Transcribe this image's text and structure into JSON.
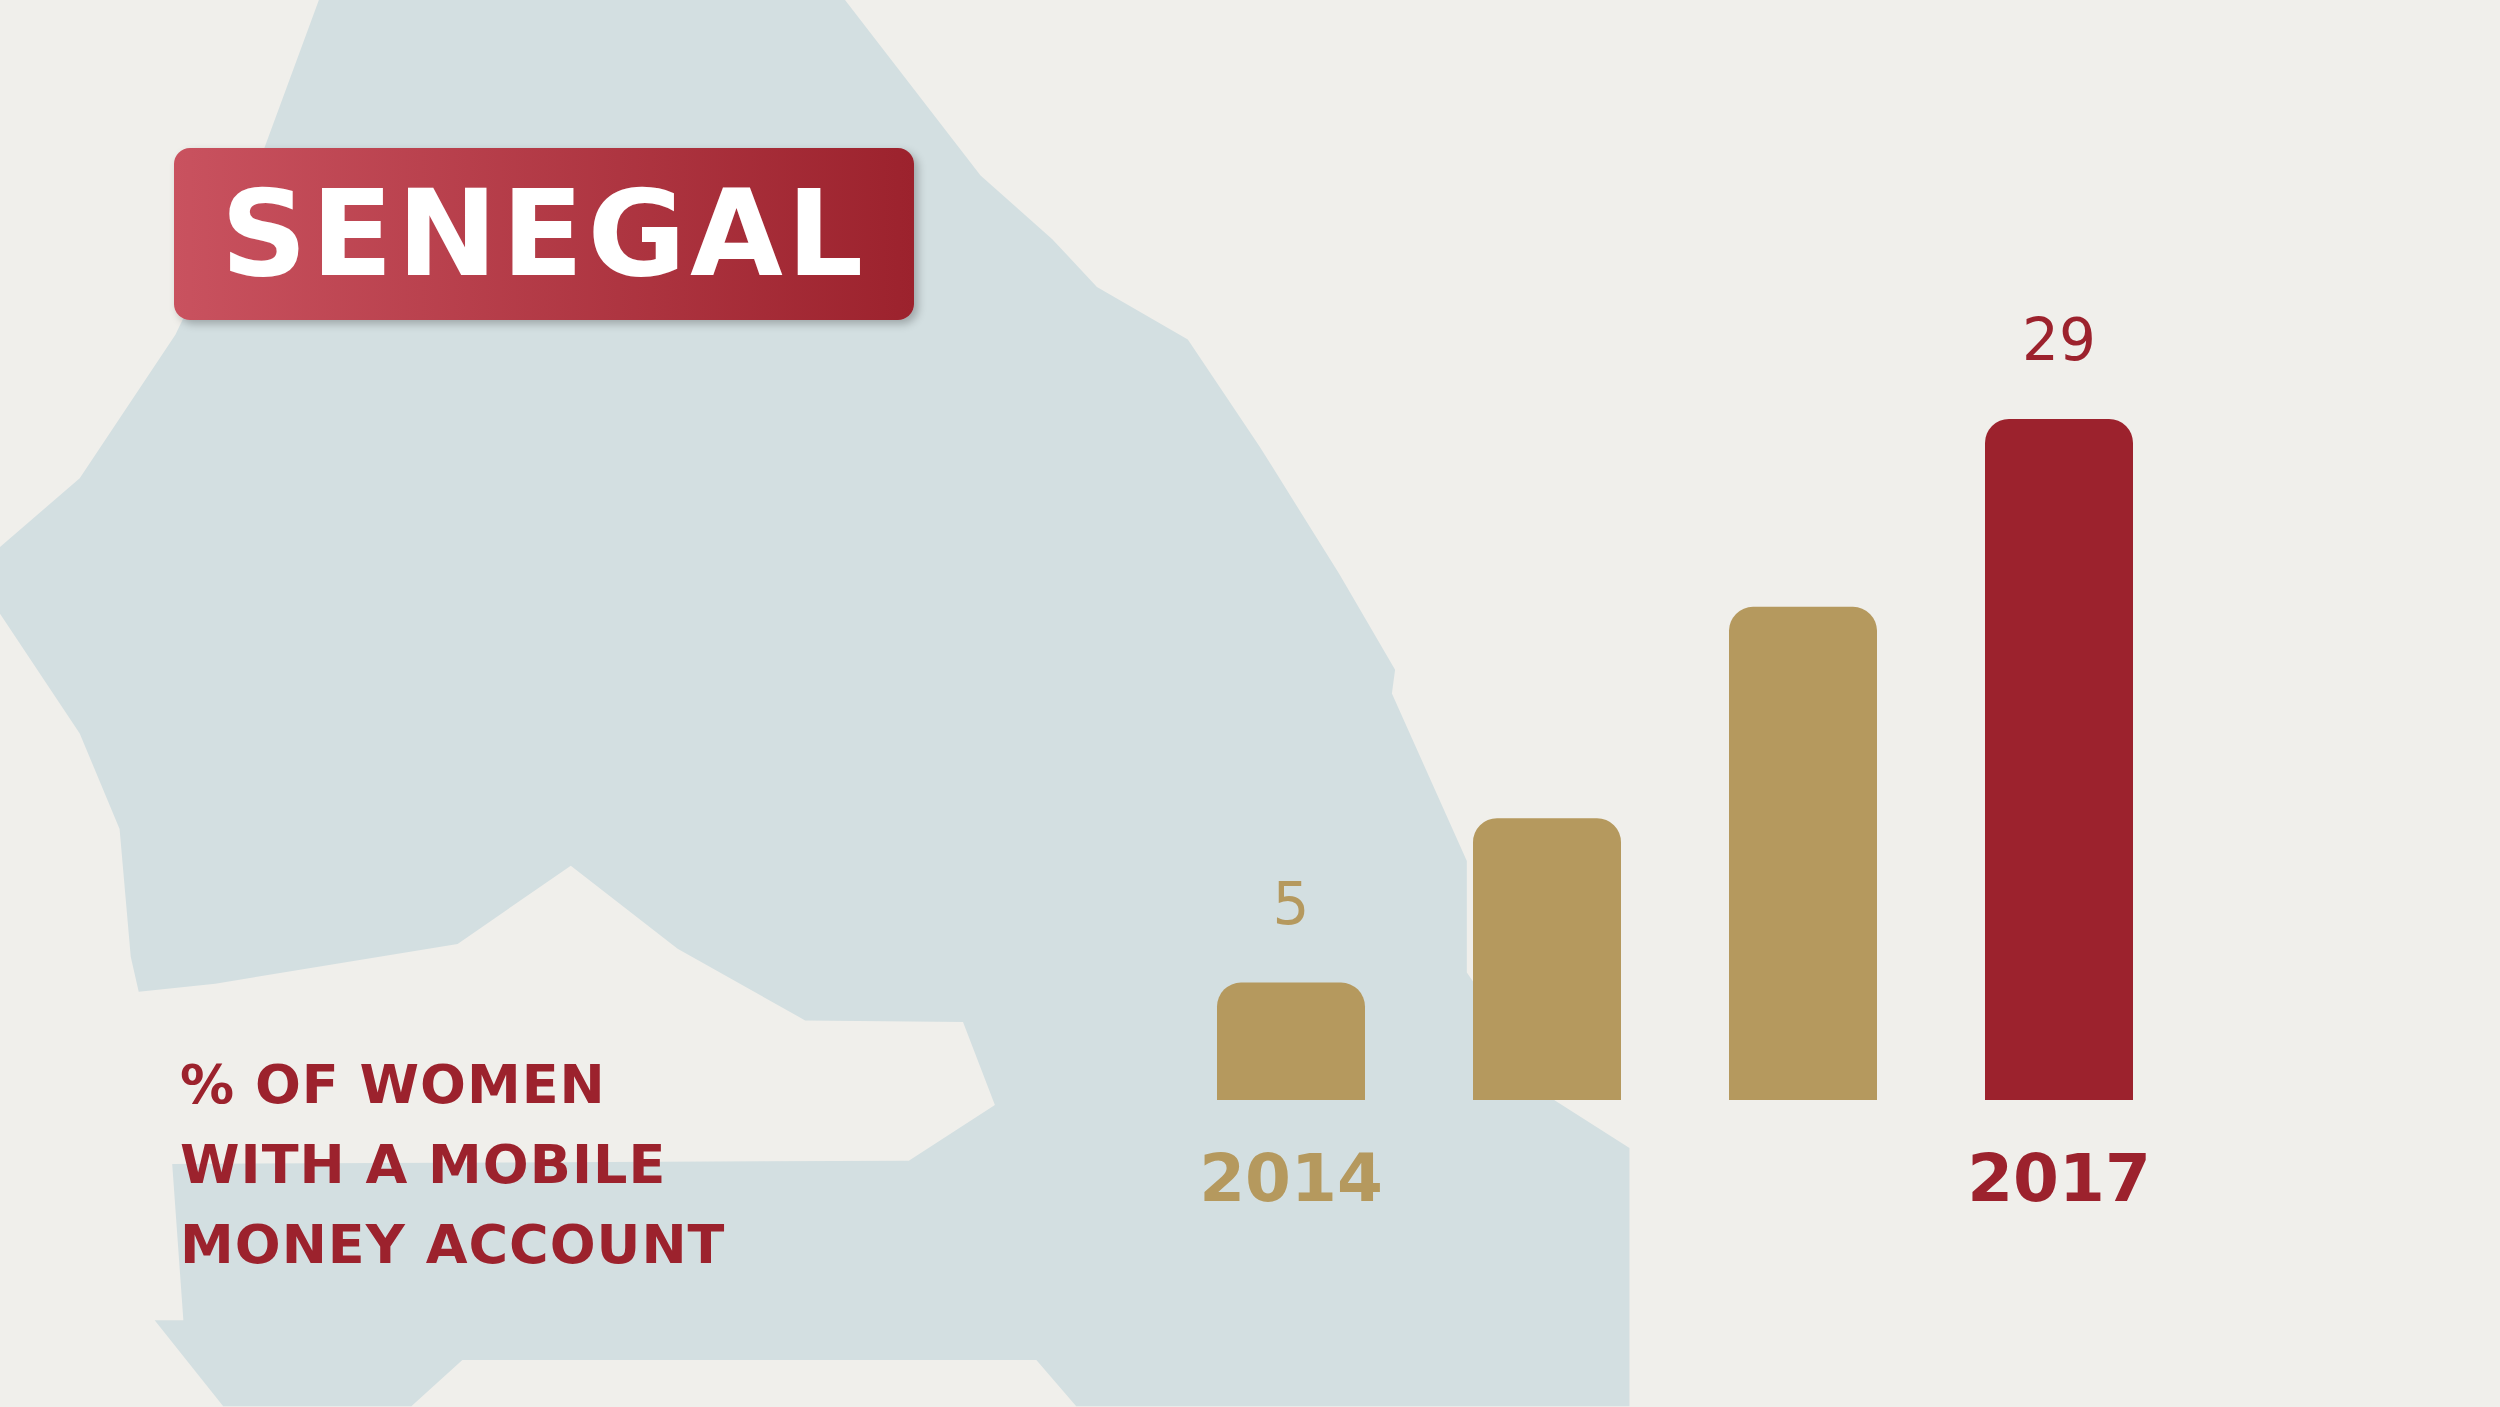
{
  "chart_data": {
    "type": "bar",
    "title": "SENEGAL",
    "annotations": [
      "% OF WOMEN WITH A MOBILE MONEY ACCOUNT"
    ],
    "categories": [
      "2014",
      null,
      null,
      "2017"
    ],
    "values": [
      5,
      12,
      21,
      29
    ],
    "colors": [
      "#b5995e",
      "#b5995e",
      "#b5995e",
      "#9c222d"
    ],
    "value_labels": [
      "5",
      null,
      null,
      "29"
    ]
  }
}
